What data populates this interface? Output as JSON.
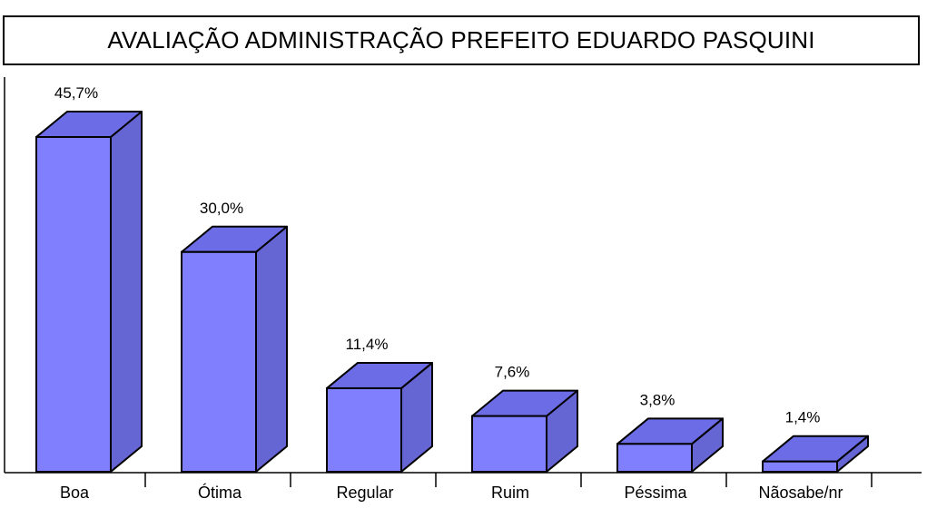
{
  "chart_data": {
    "type": "bar",
    "title": "AVALIAÇÃO ADMINISTRAÇÃO PREFEITO EDUARDO PASQUINI",
    "categories": [
      "Boa",
      "Ótima",
      "Regular",
      "Ruim",
      "Péssima",
      "Nãosabe/nr"
    ],
    "values": [
      45.7,
      30.0,
      11.4,
      7.6,
      3.8,
      1.4
    ],
    "value_labels": [
      "45,7%",
      "30,0%",
      "11,4%",
      "7,6%",
      "3,8%",
      "1,4%"
    ],
    "xlabel": "",
    "ylabel": "",
    "ylim": [
      0,
      45.7
    ],
    "grid": false,
    "legend": "none",
    "style": "3d-bar",
    "colors": {
      "front": "#8080ff",
      "top": "#6c6ce6",
      "side": "#6565d4",
      "outline": "#000000"
    }
  }
}
